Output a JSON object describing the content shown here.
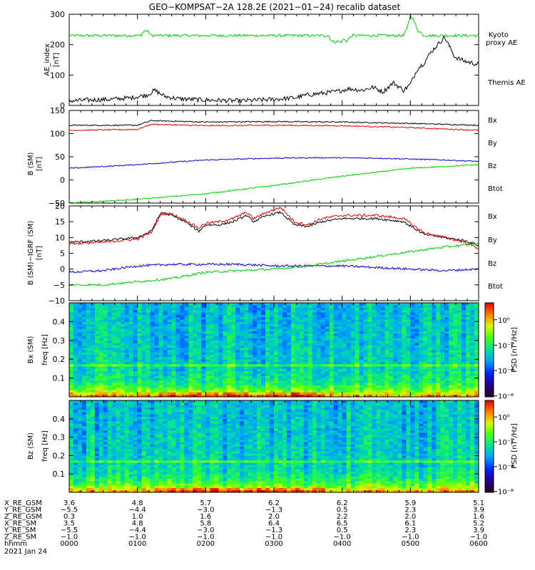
{
  "title": "GEO−KOMPSAT−2A 128.2E (2021−01−24) recalib dataset",
  "colors": {
    "black": "#000000",
    "red": "#e00000",
    "green": "#00cc00",
    "blue": "#0000cc"
  },
  "chart_data": [
    {
      "type": "line",
      "ylabel": "AE_index",
      "yunit": "[nT]",
      "ylim": [
        0,
        300
      ],
      "yticks": [
        "0",
        "100",
        "200",
        "300"
      ],
      "x_range_hours": [
        0,
        6
      ],
      "series": [
        {
          "name": "Kyoto proxy AE",
          "color": "green",
          "x": [
            0,
            1.05,
            1.1,
            1.15,
            1.2,
            1.3,
            3.8,
            3.85,
            4.0,
            4.02,
            4.06,
            4.1,
            4.15,
            4.9,
            4.95,
            5.0,
            5.05,
            5.1,
            5.2,
            6.0
          ],
          "y": [
            230,
            230,
            245,
            245,
            230,
            230,
            230,
            210,
            210,
            220,
            210,
            220,
            230,
            230,
            250,
            300,
            280,
            250,
            230,
            230
          ]
        },
        {
          "name": "Themis AE",
          "color": "black",
          "x": [
            0,
            0.3,
            0.6,
            0.9,
            1.15,
            1.25,
            1.4,
            1.6,
            2.0,
            2.5,
            3.0,
            3.3,
            3.5,
            3.7,
            3.9,
            4.1,
            4.3,
            4.45,
            4.6,
            4.75,
            4.9,
            5.0,
            5.1,
            5.2,
            5.3,
            5.5,
            5.65,
            5.8,
            6.0
          ],
          "y": [
            15,
            18,
            20,
            25,
            35,
            50,
            30,
            22,
            18,
            15,
            20,
            25,
            35,
            40,
            45,
            55,
            50,
            60,
            45,
            75,
            50,
            70,
            120,
            140,
            175,
            225,
            160,
            145,
            135
          ]
        }
      ]
    },
    {
      "type": "line",
      "ylabel": "B (SM)",
      "yunit": "[nT]",
      "ylim": [
        -50,
        150
      ],
      "yticks": [
        "−50",
        "0",
        "50",
        "100",
        "150"
      ],
      "x_range_hours": [
        0,
        6
      ],
      "legend": [
        "Bx",
        "By",
        "Bz",
        "Btot"
      ],
      "series": [
        {
          "name": "Btot",
          "color": "black",
          "x": [
            0,
            1.0,
            1.2,
            2.0,
            3.0,
            4.0,
            5.0,
            6.0
          ],
          "y": [
            118,
            118,
            128,
            125,
            126,
            125,
            122,
            118
          ]
        },
        {
          "name": "Bz",
          "color": "red",
          "x": [
            0,
            1.0,
            1.2,
            2.0,
            3.0,
            4.0,
            5.0,
            6.0
          ],
          "y": [
            107,
            109,
            120,
            117,
            118,
            117,
            113,
            107
          ]
        },
        {
          "name": "Bx",
          "color": "blue",
          "x": [
            0,
            1.0,
            2.0,
            3.0,
            3.7,
            4.5,
            5.5,
            6.0
          ],
          "y": [
            25,
            33,
            43,
            47,
            48,
            47,
            43,
            40
          ]
        },
        {
          "name": "By",
          "color": "green",
          "x": [
            0,
            1.0,
            2.0,
            3.0,
            4.0,
            5.0,
            6.0
          ],
          "y": [
            -50,
            -42,
            -30,
            -12,
            8,
            25,
            33
          ]
        }
      ]
    },
    {
      "type": "line",
      "ylabel": "B (SM)−IGRF (SM)",
      "yunit": "[nT]",
      "ylim": [
        -10,
        20
      ],
      "yticks": [
        "−10",
        "−5",
        "0",
        "5",
        "10",
        "15",
        "20"
      ],
      "x_range_hours": [
        0,
        6
      ],
      "legend": [
        "Bx",
        "By",
        "Bz",
        "Btot"
      ],
      "series": [
        {
          "name": "Btot",
          "color": "black",
          "x": [
            0,
            0.5,
            1.0,
            1.2,
            1.35,
            1.5,
            1.7,
            1.9,
            2.0,
            2.2,
            2.4,
            2.6,
            2.7,
            2.9,
            3.1,
            3.3,
            3.5,
            3.7,
            4.0,
            4.5,
            4.9,
            5.2,
            5.5,
            5.8,
            6.0
          ],
          "y": [
            8.5,
            9,
            10,
            12,
            18,
            17,
            15,
            12,
            14,
            14,
            15,
            17,
            15,
            17,
            18,
            14,
            13.5,
            15,
            16,
            16,
            15,
            11,
            10,
            9,
            7.5
          ]
        },
        {
          "name": "Bz",
          "color": "red",
          "x": [
            0,
            0.5,
            1.0,
            1.2,
            1.35,
            1.5,
            1.7,
            1.9,
            2.0,
            2.2,
            2.4,
            2.6,
            2.7,
            2.9,
            3.1,
            3.3,
            3.5,
            3.7,
            4.0,
            4.5,
            4.9,
            5.2,
            5.5,
            5.8,
            6.0
          ],
          "y": [
            8,
            8.5,
            9.5,
            11.5,
            17.5,
            17.5,
            15.5,
            13,
            14.5,
            15,
            16,
            18,
            16,
            18,
            19.5,
            15,
            14,
            16,
            17,
            17,
            16,
            11.5,
            10,
            8.5,
            6.5
          ]
        },
        {
          "name": "Bx",
          "color": "blue",
          "x": [
            0,
            0.5,
            1.0,
            1.5,
            2.0,
            2.5,
            3.0,
            3.5,
            4.0,
            4.5,
            5.0,
            5.5,
            6.0
          ],
          "y": [
            -1,
            -0.5,
            1,
            1.5,
            1.5,
            1.5,
            1,
            1,
            1,
            0.5,
            0,
            -0.5,
            0
          ]
        },
        {
          "name": "By",
          "color": "green",
          "x": [
            0,
            0.5,
            1.0,
            1.5,
            2.0,
            2.5,
            3.0,
            3.5,
            4.0,
            4.5,
            5.0,
            5.5,
            6.0
          ],
          "y": [
            -5,
            -5,
            -4,
            -3,
            -1,
            -0.5,
            0,
            1,
            2.5,
            4,
            5.5,
            7,
            8
          ]
        }
      ]
    },
    {
      "type": "heatmap",
      "ylabel": "Bx (SM)",
      "yunit": "freq [Hz]",
      "ylim": [
        0,
        0.5
      ],
      "yticks": [
        "0.1",
        "0.2",
        "0.3",
        "0.4"
      ],
      "x_range_hours": [
        0,
        6
      ],
      "colorbar": {
        "label": "PSD [nT²/Hz]",
        "ticks": [
          "10⁰",
          "10⁻²",
          "10⁻⁴",
          "10⁻⁶"
        ]
      }
    },
    {
      "type": "heatmap",
      "ylabel": "Bz (SM)",
      "yunit": "freq [Hz]",
      "ylim": [
        0,
        0.5
      ],
      "yticks": [
        "0.1",
        "0.2",
        "0.3",
        "0.4"
      ],
      "x_range_hours": [
        0,
        6
      ],
      "colorbar": {
        "label": "PSD [nT²/Hz]",
        "ticks": [
          "10⁰",
          "10⁻²",
          "10⁻⁴",
          "10⁻⁶"
        ]
      }
    }
  ],
  "ephemeris": {
    "rows": [
      {
        "label": "X_RE_GSM",
        "values": [
          "3.6",
          "4.8",
          "5.7",
          "6.2",
          "6.2",
          "5.9",
          "5.1"
        ]
      },
      {
        "label": "Y_RE_GSM",
        "values": [
          "−5.5",
          "−4.4",
          "−3.0",
          "−1.3",
          "0.5",
          "2.3",
          "3.9"
        ]
      },
      {
        "label": "Z_RE_GSM",
        "values": [
          "0.3",
          "1.0",
          "1.6",
          "2.0",
          "2.2",
          "2.0",
          "1.6"
        ]
      },
      {
        "label": "X_RE_SM",
        "values": [
          "3.5",
          "4.8",
          "5.8",
          "6.4",
          "6.5",
          "6.1",
          "5.2"
        ]
      },
      {
        "label": "Y_RE_SM",
        "values": [
          "−5.5",
          "−4.4",
          "−3.0",
          "−1.3",
          "0.5",
          "2.3",
          "3.9"
        ]
      },
      {
        "label": "Z_RE_SM",
        "values": [
          "−1.0",
          "−1.0",
          "−1.0",
          "−1.0",
          "−1.0",
          "−1.0",
          "−1.0"
        ]
      },
      {
        "label": "hhmm",
        "values": [
          "0000",
          "0100",
          "0200",
          "0300",
          "0400",
          "0500",
          "0600"
        ]
      }
    ],
    "date": "2021 Jan 24"
  }
}
